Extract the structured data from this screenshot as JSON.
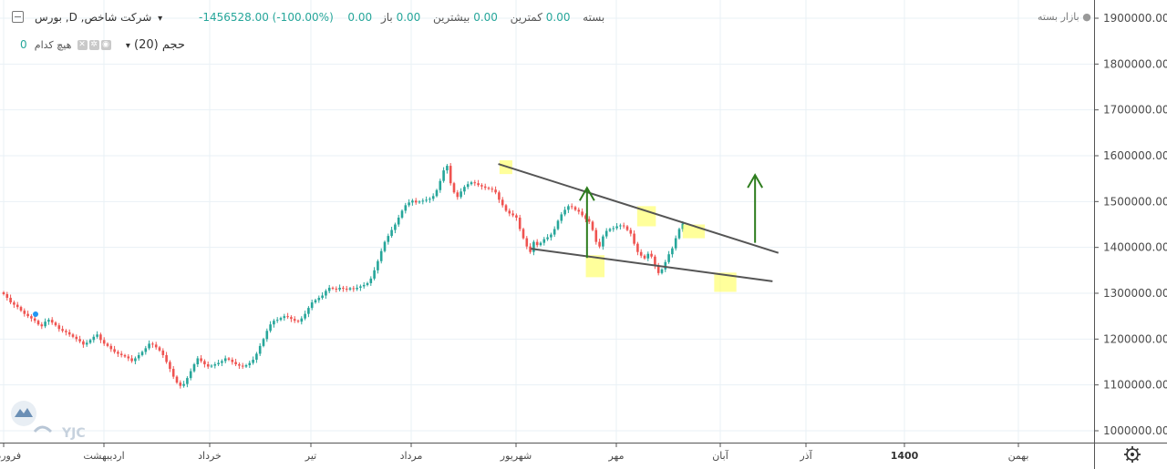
{
  "header": {
    "symbol": "بورس ,D ,شرکت شاخص",
    "open_label": "باز",
    "open_value": "0.00",
    "high_label": "بیشترین",
    "high_value": "0.00",
    "low_label": "کمترین",
    "low_value": "0.00",
    "close_label": "بسته",
    "close_value": "0.00",
    "change_value": "-1456528.00 (-100.00%)",
    "market_status": "بازار بسته"
  },
  "indicator": {
    "label": "حجم (20)",
    "none_text": "هیچ کدام",
    "value": "0"
  },
  "watermark": "YJC",
  "colors": {
    "up": "#26a69a",
    "down": "#ef5350",
    "trend_line": "#555555",
    "arrow": "#2e7d1e",
    "highlight": "#ffff66",
    "grid": "#e9f1f6"
  },
  "chart_data": {
    "type": "candlestick",
    "y_range": [
      960000,
      1920000
    ],
    "price_ticks": [
      "1900000.00",
      "1800000.00",
      "1700000.00",
      "1600000.00",
      "1500000.00",
      "1400000.00",
      "1300000.00",
      "1200000.00",
      "1100000.00",
      "1000000.00"
    ],
    "time_labels": [
      "فروردین",
      "اردیبهشت",
      "خرداد",
      "تیر",
      "مرداد",
      "شهریور",
      "مهر",
      "آبان",
      "آذر",
      "1400",
      "بهمن"
    ],
    "time_bold": "1400",
    "closes": [
      1298000,
      1290000,
      1280000,
      1275000,
      1270000,
      1262000,
      1255000,
      1250000,
      1245000,
      1240000,
      1232000,
      1228000,
      1238000,
      1242000,
      1236000,
      1230000,
      1222000,
      1218000,
      1215000,
      1210000,
      1205000,
      1200000,
      1195000,
      1188000,
      1192000,
      1198000,
      1205000,
      1210000,
      1198000,
      1190000,
      1185000,
      1178000,
      1172000,
      1168000,
      1165000,
      1162000,
      1158000,
      1152000,
      1158000,
      1165000,
      1172000,
      1180000,
      1190000,
      1188000,
      1182000,
      1175000,
      1165000,
      1150000,
      1135000,
      1118000,
      1105000,
      1098000,
      1102000,
      1115000,
      1130000,
      1145000,
      1158000,
      1152000,
      1145000,
      1140000,
      1142000,
      1145000,
      1148000,
      1152000,
      1158000,
      1155000,
      1150000,
      1145000,
      1142000,
      1140000,
      1143000,
      1148000,
      1155000,
      1168000,
      1185000,
      1200000,
      1218000,
      1232000,
      1240000,
      1242000,
      1246000,
      1250000,
      1248000,
      1244000,
      1240000,
      1238000,
      1245000,
      1255000,
      1268000,
      1280000,
      1285000,
      1290000,
      1295000,
      1305000,
      1312000,
      1310000,
      1308000,
      1312000,
      1310000,
      1308000,
      1311000,
      1309000,
      1312000,
      1315000,
      1318000,
      1322000,
      1332000,
      1350000,
      1370000,
      1392000,
      1412000,
      1425000,
      1438000,
      1450000,
      1465000,
      1480000,
      1492000,
      1498000,
      1502000,
      1498000,
      1500000,
      1502000,
      1504000,
      1506000,
      1512000,
      1525000,
      1545000,
      1568000,
      1578000,
      1540000,
      1520000,
      1510000,
      1522000,
      1532000,
      1538000,
      1542000,
      1540000,
      1536000,
      1533000,
      1530000,
      1528000,
      1526000,
      1520000,
      1504000,
      1492000,
      1480000,
      1474000,
      1470000,
      1465000,
      1440000,
      1420000,
      1402000,
      1390000,
      1412000,
      1405000,
      1410000,
      1418000,
      1422000,
      1428000,
      1440000,
      1458000,
      1472000,
      1482000,
      1490000,
      1488000,
      1482000,
      1478000,
      1470000,
      1462000,
      1456000,
      1438000,
      1412000,
      1402000,
      1424000,
      1436000,
      1440000,
      1442000,
      1446000,
      1448000,
      1446000,
      1438000,
      1430000,
      1408000,
      1390000,
      1382000,
      1376000,
      1386000,
      1380000,
      1360000,
      1344000,
      1352000,
      1368000,
      1385000,
      1398000,
      1420000,
      1440000,
      1452000
    ]
  },
  "annotations": {
    "upper_line": {
      "from": [
        0.427,
        1582000
      ],
      "to": [
        0.667,
        1388000
      ]
    },
    "lower_line": {
      "from": [
        0.455,
        1397000
      ],
      "to": [
        0.662,
        1326000
      ]
    },
    "arrows": [
      {
        "x": 0.503,
        "y_from": 1377000,
        "y_to": 1530000
      },
      {
        "x": 0.647,
        "y_from": 1410000,
        "y_to": 1558000
      }
    ],
    "highlights": [
      {
        "x": 0.428,
        "y": 1590000,
        "w": 0.011,
        "h": 30000
      },
      {
        "x": 0.502,
        "y": 1383000,
        "w": 0.016,
        "h": 48000
      },
      {
        "x": 0.546,
        "y": 1490000,
        "w": 0.016,
        "h": 44000
      },
      {
        "x": 0.585,
        "y": 1450000,
        "w": 0.019,
        "h": 30000
      },
      {
        "x": 0.612,
        "y": 1345000,
        "w": 0.019,
        "h": 42000
      }
    ]
  }
}
